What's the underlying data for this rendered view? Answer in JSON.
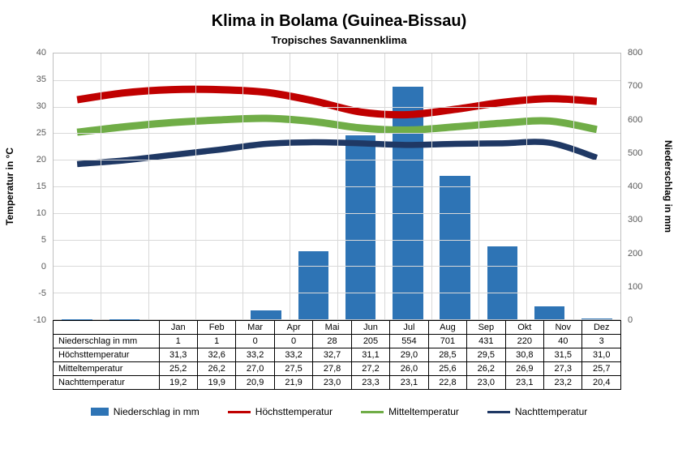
{
  "title": "Klima in Bolama (Guinea-Bissau)",
  "subtitle": "Tropisches Savannenklima",
  "y_left": {
    "label": "Temperatur in °C",
    "min": -10,
    "max": 40,
    "step": 5
  },
  "y_right": {
    "label": "Niederschlag in mm",
    "min": 0,
    "max": 800,
    "step": 100
  },
  "months": [
    "Jan",
    "Feb",
    "Mar",
    "Apr",
    "Mai",
    "Jun",
    "Jul",
    "Aug",
    "Sep",
    "Okt",
    "Nov",
    "Dez"
  ],
  "series": {
    "precip": {
      "label": "Niederschlag in mm",
      "color": "#2e74b5",
      "type": "bar",
      "data": [
        1,
        1,
        0,
        0,
        28,
        205,
        554,
        701,
        431,
        220,
        40,
        3
      ]
    },
    "high": {
      "label": "Höchsttemperatur",
      "color": "#c00000",
      "type": "line",
      "width": 3,
      "data": [
        31.3,
        32.6,
        33.2,
        33.2,
        32.7,
        31.1,
        29.0,
        28.5,
        29.5,
        30.8,
        31.5,
        31.0
      ],
      "display": [
        "31,3",
        "32,6",
        "33,2",
        "33,2",
        "32,7",
        "31,1",
        "29,0",
        "28,5",
        "29,5",
        "30,8",
        "31,5",
        "31,0"
      ]
    },
    "mean": {
      "label": "Mitteltemperatur",
      "color": "#70ad47",
      "type": "line",
      "width": 3,
      "data": [
        25.2,
        26.2,
        27.0,
        27.5,
        27.8,
        27.2,
        26.0,
        25.6,
        26.2,
        26.9,
        27.3,
        25.7
      ],
      "display": [
        "25,2",
        "26,2",
        "27,0",
        "27,5",
        "27,8",
        "27,2",
        "26,0",
        "25,6",
        "26,2",
        "26,9",
        "27,3",
        "25,7"
      ]
    },
    "night": {
      "label": "Nachttemperatur",
      "color": "#1f3864",
      "type": "line",
      "width": 2.5,
      "data": [
        19.2,
        19.9,
        20.9,
        21.9,
        23.0,
        23.3,
        23.1,
        22.8,
        23.0,
        23.1,
        23.2,
        20.4
      ],
      "display": [
        "19,2",
        "19,9",
        "20,9",
        "21,9",
        "23,0",
        "23,3",
        "23,1",
        "22,8",
        "23,0",
        "23,1",
        "23,2",
        "20,4"
      ]
    }
  },
  "table_rows": [
    "precip",
    "high",
    "mean",
    "night"
  ],
  "grid_color": "#d9d9d9",
  "plot_border": "#bfbfbf"
}
